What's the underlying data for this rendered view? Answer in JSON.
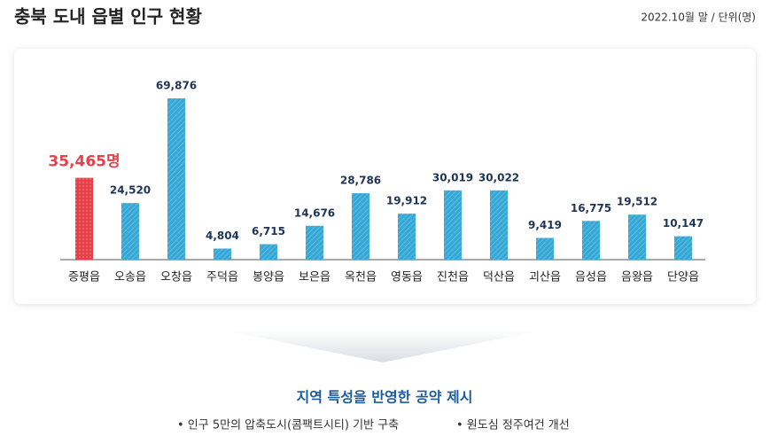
{
  "header": {
    "title": "충북 도내 읍별 인구 현황",
    "note": "2022.10월 말 / 단위(명)"
  },
  "chart_data": {
    "type": "bar",
    "categories": [
      "증평읍",
      "오송읍",
      "오창읍",
      "주덕읍",
      "봉양읍",
      "보은읍",
      "옥천읍",
      "영동읍",
      "진천읍",
      "덕산읍",
      "괴산읍",
      "음성읍",
      "음왕읍",
      "단양읍"
    ],
    "values": [
      35465,
      24520,
      69876,
      4804,
      6715,
      14676,
      28786,
      19912,
      30019,
      30022,
      9419,
      16775,
      19512,
      10147
    ],
    "value_labels": [
      "35,465명",
      "24,520",
      "69,876",
      "4,804",
      "6,715",
      "14,676",
      "28,786",
      "19,912",
      "30,019",
      "30,022",
      "9,419",
      "16,775",
      "19,512",
      "10,147"
    ],
    "color": "#35a8d5",
    "highlight": 0,
    "highlight_color": "#e8404b"
  },
  "footer": {
    "heading": "지역 특성을 반영한 공약 제시",
    "bullets": [
      "• 인구 5만의 압축도시(콤팩트시티) 기반 구축",
      "• 원도심 정주여건 개선"
    ]
  }
}
